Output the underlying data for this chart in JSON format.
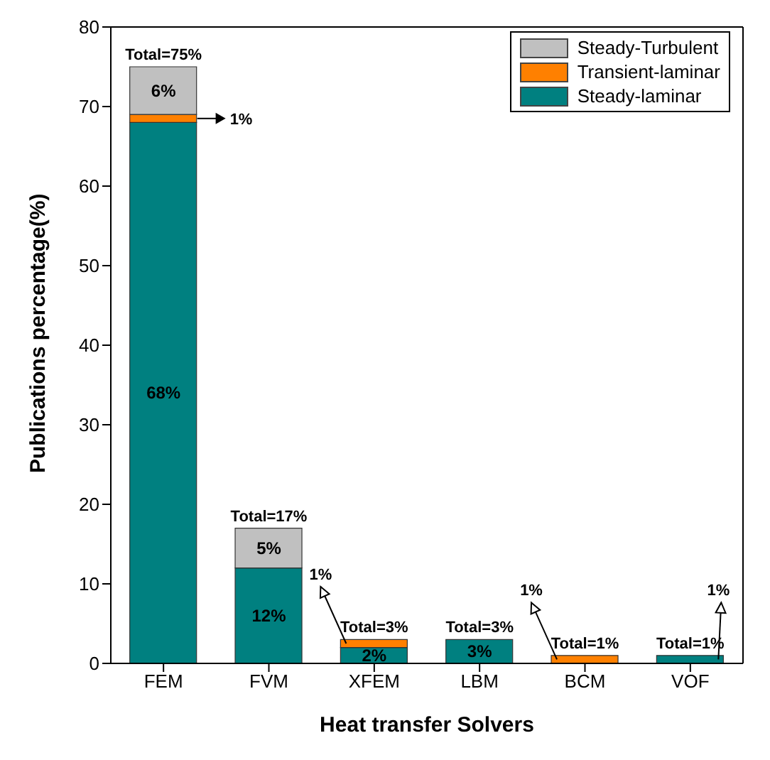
{
  "chart_data": {
    "type": "bar",
    "stacked": true,
    "xlabel": "Heat transfer Solvers",
    "ylabel": "Publications percentage(%)",
    "categories": [
      "FEM",
      "FVM",
      "XFEM",
      "LBM",
      "BCM",
      "VOF"
    ],
    "series": [
      {
        "name": "Steady-laminar",
        "color": "#008080",
        "values": [
          68,
          12,
          2,
          3,
          0,
          1
        ],
        "value_labels": [
          "68%",
          "12%",
          "2%",
          "3%",
          null,
          "1%"
        ]
      },
      {
        "name": "Transient-laminar",
        "color": "#ff8000",
        "values": [
          1,
          0,
          1,
          0,
          1,
          0
        ],
        "value_labels": [
          "1%",
          null,
          "1%",
          null,
          "1%",
          null
        ]
      },
      {
        "name": "Steady-Turbulent",
        "color": "#c0c0c0",
        "values": [
          6,
          5,
          0,
          0,
          0,
          0
        ],
        "value_labels": [
          "6%",
          "5%",
          null,
          null,
          null,
          null
        ]
      }
    ],
    "totals": [
      "Total=75%",
      "Total=17%",
      "Total=3%",
      "Total=3%",
      "Total=1%",
      "Total=1%"
    ],
    "ylim": [
      0,
      80
    ],
    "yticks": [
      0,
      10,
      20,
      30,
      40,
      50,
      60,
      70,
      80
    ],
    "grid": false,
    "legend": "top right"
  }
}
